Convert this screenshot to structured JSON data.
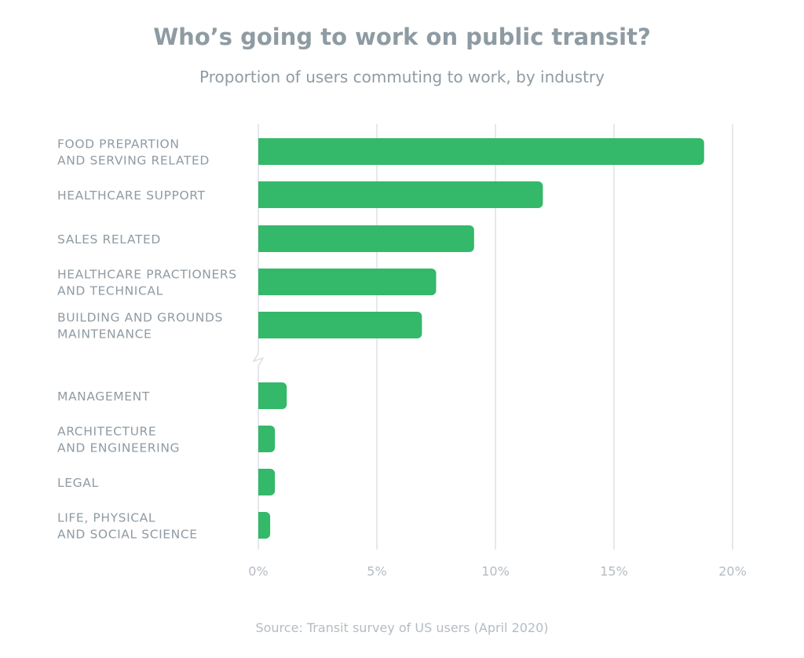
{
  "chart_data": {
    "type": "bar",
    "orientation": "horizontal",
    "title": "Who’s going to work on public transit?",
    "subtitle": "Proportion of users commuting to work, by industry",
    "categories": [
      [
        "FOOD PREPARTION",
        "AND SERVING RELATED"
      ],
      [
        "HEALTHCARE SUPPORT"
      ],
      [
        "SALES RELATED"
      ],
      [
        "HEALTHCARE PRACTIONERS",
        "AND TECHNICAL"
      ],
      [
        "BUILDING AND GROUNDS",
        "MAINTENANCE"
      ],
      [
        "MANAGEMENT"
      ],
      [
        "ARCHITECTURE",
        "AND ENGINEERING"
      ],
      [
        "LEGAL"
      ],
      [
        "LIFE, PHYSICAL",
        "AND SOCIAL SCIENCE"
      ]
    ],
    "values": [
      18.8,
      12.0,
      9.1,
      7.5,
      6.9,
      1.2,
      0.7,
      0.7,
      0.5
    ],
    "xlim": [
      0,
      20
    ],
    "xticks": [
      "0%",
      "5%",
      "10%",
      "15%",
      "20%"
    ],
    "xtick_values": [
      0,
      5,
      10,
      15,
      20
    ],
    "axis_break_after_index": 4,
    "grid": true,
    "colors": {
      "bar": "#34b86a",
      "text": "#8f9ba3",
      "tick": "#b5bcc2",
      "grid": "#dde1e4"
    }
  },
  "source": "Source: Transit survey of US users (April 2020)"
}
